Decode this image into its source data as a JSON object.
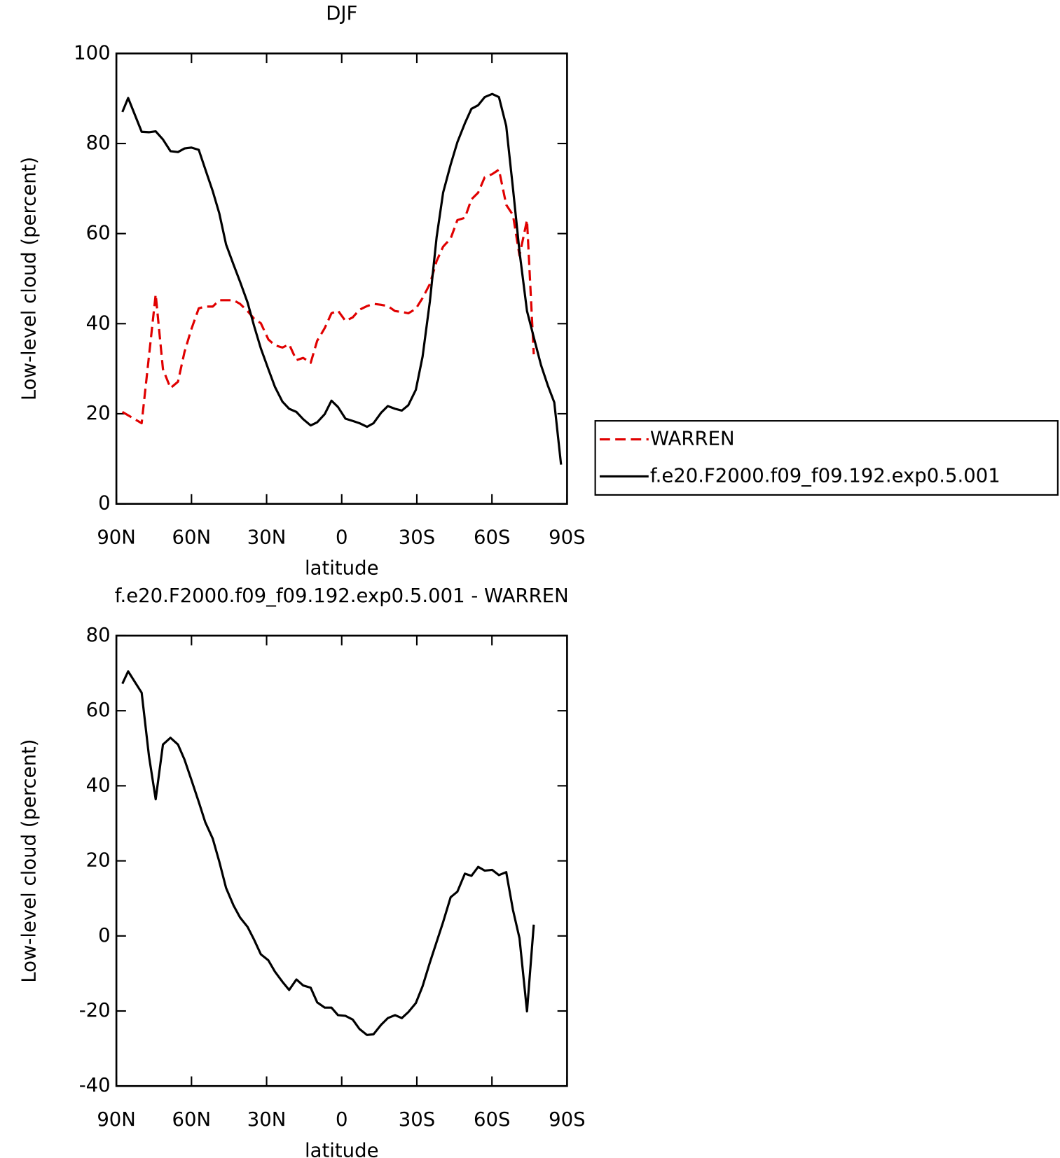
{
  "chart_data": [
    {
      "type": "line",
      "title": "DJF",
      "xlabel": "latitude",
      "ylabel": "Low-level cloud (percent)",
      "xlim": [
        90,
        -90
      ],
      "xticks": [
        {
          "value": 90,
          "label": "90N"
        },
        {
          "value": 60,
          "label": "60N"
        },
        {
          "value": 30,
          "label": "30N"
        },
        0,
        {
          "value": -30,
          "label": "30S"
        },
        {
          "value": -60,
          "label": "60S"
        },
        {
          "value": -90,
          "label": "90S"
        }
      ],
      "ylim": [
        0,
        100
      ],
      "yticks": [
        0,
        20,
        40,
        60,
        80,
        100
      ],
      "legend": "right",
      "series": [
        {
          "name": "WARREN",
          "color": "#e00000",
          "dash": "dashed",
          "x": [
            87.6,
            79.9,
            74.3,
            71.4,
            68.4,
            65.4,
            62.8,
            60.1,
            57.1,
            54.5,
            51.5,
            48.9,
            46.2,
            43.2,
            40.6,
            37.6,
            35.0,
            32.3,
            29.3,
            26.7,
            23.7,
            21.0,
            18.1,
            15.4,
            12.4,
            9.8,
            6.8,
            4.1,
            1.5,
            -1.5,
            -4.4,
            -7.1,
            -10.1,
            -12.7,
            -15.7,
            -18.4,
            -21.3,
            -24.0,
            -26.6,
            -29.6,
            -32.3,
            -35.2,
            -37.9,
            -40.5,
            -43.5,
            -46.2,
            -49.2,
            -51.8,
            -54.5,
            -57.1,
            -60.1,
            -62.8,
            -65.7,
            -68.4,
            -71.0,
            -74.0,
            -76.7
          ],
          "values": [
            20.4,
            17.9,
            46.5,
            29.9,
            25.7,
            27.1,
            33.7,
            38.7,
            43.4,
            43.8,
            43.8,
            45.2,
            45.2,
            45.2,
            44.4,
            42.8,
            41.1,
            40.1,
            36.5,
            35.2,
            34.7,
            35.4,
            31.9,
            32.4,
            31.3,
            36.2,
            39,
            42.3,
            42.9,
            40.6,
            41.4,
            43.1,
            43.9,
            44.4,
            44.2,
            43.9,
            42.8,
            42.6,
            42.3,
            43.3,
            45.7,
            48.8,
            53.9,
            57.1,
            58.9,
            63,
            63.5,
            67.6,
            69.1,
            72.5,
            73.2,
            74.2,
            66.4,
            64.1,
            55.1,
            63,
            33.2
          ]
        },
        {
          "name": "f.e20.F2000.f09_f09.192.exp0.5.001",
          "color": "#000000",
          "dash": "solid",
          "x": [
            87.6,
            85.3,
            79.9,
            77.0,
            74.3,
            71.4,
            68.4,
            65.4,
            62.8,
            60.1,
            57.1,
            54.5,
            51.5,
            48.9,
            46.2,
            43.2,
            40.6,
            37.6,
            35.0,
            32.3,
            29.3,
            26.7,
            23.7,
            21.0,
            18.1,
            15.4,
            12.4,
            9.8,
            6.8,
            4.1,
            1.5,
            -1.5,
            -4.4,
            -7.1,
            -10.1,
            -12.7,
            -15.7,
            -18.4,
            -21.3,
            -24.0,
            -26.6,
            -29.6,
            -32.3,
            -35.2,
            -37.9,
            -40.5,
            -43.5,
            -46.2,
            -49.2,
            -51.8,
            -54.5,
            -57.1,
            -60.1,
            -62.8,
            -65.7,
            -68.4,
            -71.0,
            -74.0,
            -76.7,
            -79.6,
            -82.3,
            -84.9,
            -87.6
          ],
          "values": [
            87,
            90.1,
            82.6,
            82.5,
            82.7,
            80.9,
            78.3,
            78.1,
            78.9,
            79.1,
            78.6,
            74.3,
            69.4,
            64.5,
            57.6,
            53.1,
            49.3,
            44.7,
            39.5,
            34.5,
            29.9,
            26,
            22.7,
            21.1,
            20.4,
            18.8,
            17.4,
            18.1,
            19.9,
            22.9,
            21.5,
            18.9,
            18.4,
            17.9,
            17.1,
            17.9,
            20.2,
            21.7,
            21.1,
            20.7,
            21.9,
            25.3,
            32.7,
            44.9,
            59.2,
            69.1,
            75.3,
            80.3,
            84.5,
            87.7,
            88.5,
            90.3,
            91,
            90.3,
            83.9,
            70,
            56,
            42.8,
            37,
            30.8,
            26.3,
            22.5,
            8.7
          ]
        }
      ]
    },
    {
      "type": "line",
      "title": "f.e20.F2000.f09_f09.192.exp0.5.001 - WARREN",
      "xlabel": "latitude",
      "ylabel": "Low-level cloud (percent)",
      "xlim": [
        90,
        -90
      ],
      "xticks": [
        {
          "value": 90,
          "label": "90N"
        },
        {
          "value": 60,
          "label": "60N"
        },
        {
          "value": 30,
          "label": "30N"
        },
        0,
        {
          "value": -30,
          "label": "30S"
        },
        {
          "value": -60,
          "label": "60S"
        },
        {
          "value": -90,
          "label": "90S"
        }
      ],
      "ylim": [
        -40,
        80
      ],
      "yticks": [
        -40,
        -20,
        0,
        20,
        40,
        60,
        80
      ],
      "series": [
        {
          "color": "#000000",
          "dash": "solid",
          "x": [
            87.6,
            85.3,
            79.9,
            77.0,
            74.3,
            71.4,
            68.4,
            65.4,
            62.8,
            60.1,
            57.1,
            54.5,
            51.5,
            48.9,
            46.2,
            43.2,
            40.6,
            37.6,
            35.0,
            32.3,
            29.3,
            26.7,
            23.7,
            21.0,
            18.1,
            15.4,
            12.4,
            9.8,
            6.8,
            4.1,
            1.5,
            -1.5,
            -4.4,
            -7.1,
            -10.1,
            -12.7,
            -15.7,
            -18.4,
            -21.3,
            -24.0,
            -26.6,
            -29.6,
            -32.3,
            -35.2,
            -37.9,
            -40.5,
            -43.5,
            -46.2,
            -49.2,
            -51.8,
            -54.5,
            -57.1,
            -60.1,
            -62.8,
            -65.7,
            -68.4,
            -71.0,
            -74.0,
            -76.7
          ],
          "values": [
            67.2,
            70.5,
            64.8,
            48,
            36.4,
            51,
            52.8,
            51,
            47,
            41.7,
            35.7,
            30.3,
            25.9,
            19.8,
            12.8,
            8.1,
            4.9,
            2.4,
            -1,
            -4.9,
            -6.5,
            -9.5,
            -12.2,
            -14.4,
            -11.6,
            -13.2,
            -13.8,
            -17.7,
            -19.1,
            -19.1,
            -21.1,
            -21.3,
            -22.3,
            -24.8,
            -26.4,
            -26.2,
            -23.7,
            -21.9,
            -21.1,
            -21.9,
            -20.3,
            -17.9,
            -13.4,
            -7.1,
            -1.6,
            3.7,
            10.3,
            11.8,
            16.6,
            16,
            18.4,
            17.4,
            17.6,
            16.2,
            17,
            6.9,
            -0.6,
            -20.1,
            3
          ]
        }
      ]
    }
  ]
}
